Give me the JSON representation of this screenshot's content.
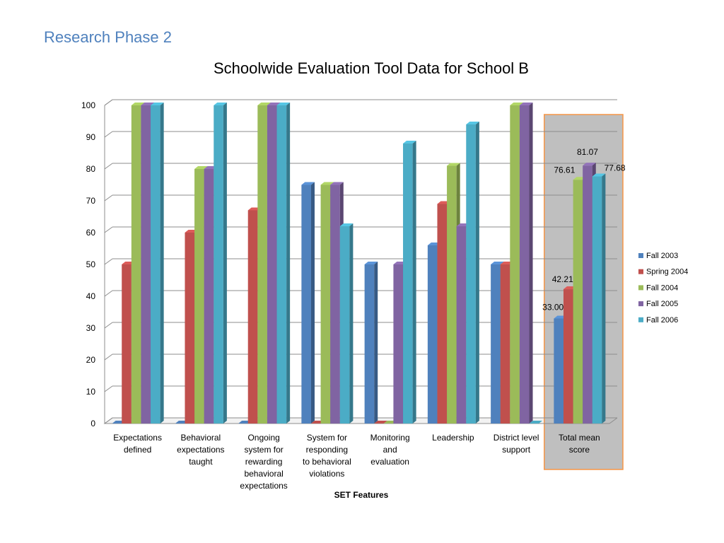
{
  "header": {
    "section_title": "Research Phase 2"
  },
  "chart_data": {
    "type": "bar",
    "title": "Schoolwide Evaluation Tool Data for School B",
    "xlabel": "SET Features",
    "ylabel": "",
    "ylim": [
      0,
      100
    ],
    "yticks": [
      0,
      10,
      20,
      30,
      40,
      50,
      60,
      70,
      80,
      90,
      100
    ],
    "grid": true,
    "legend_position": "right",
    "categories": [
      [
        "Expectations",
        "defined"
      ],
      [
        "Behavioral",
        "expectations",
        "taught"
      ],
      [
        "Ongoing",
        "system for",
        "rewarding",
        "behavioral",
        "expectations"
      ],
      [
        "System for",
        "responding",
        "to behavioral",
        "violations"
      ],
      [
        "Monitoring",
        "and",
        "evaluation"
      ],
      [
        "Leadership"
      ],
      [
        "District level",
        "support"
      ],
      [
        "Total mean",
        "score"
      ]
    ],
    "series": [
      {
        "name": "Fall 2003",
        "color": "#4f81bd",
        "values": [
          0,
          0,
          0,
          75,
          50,
          56,
          50,
          33.0
        ]
      },
      {
        "name": "Spring 2004",
        "color": "#c0504d",
        "values": [
          50,
          60,
          67,
          0,
          0,
          69,
          50,
          42.21
        ]
      },
      {
        "name": "Fall 2004",
        "color": "#9bbb59",
        "values": [
          100,
          80,
          100,
          75,
          0,
          81,
          100,
          76.61
        ]
      },
      {
        "name": "Fall 2005",
        "color": "#8064a2",
        "values": [
          100,
          80,
          100,
          75,
          50,
          62,
          100,
          81.07
        ]
      },
      {
        "name": "Fall 2006",
        "color": "#4bacc6",
        "values": [
          100,
          100,
          100,
          62,
          88,
          94,
          0,
          77.68
        ]
      }
    ],
    "data_labels": [
      {
        "category_index": 7,
        "series_index": 0,
        "text": "33.00"
      },
      {
        "category_index": 7,
        "series_index": 1,
        "text": "42.21"
      },
      {
        "category_index": 7,
        "series_index": 2,
        "text": "76.61"
      },
      {
        "category_index": 7,
        "series_index": 3,
        "text": "81.07"
      },
      {
        "category_index": 7,
        "series_index": 4,
        "text": "77.68"
      }
    ],
    "highlight": {
      "category_index": 7,
      "fill": "#bfbfbf",
      "border": "#f79646"
    }
  }
}
